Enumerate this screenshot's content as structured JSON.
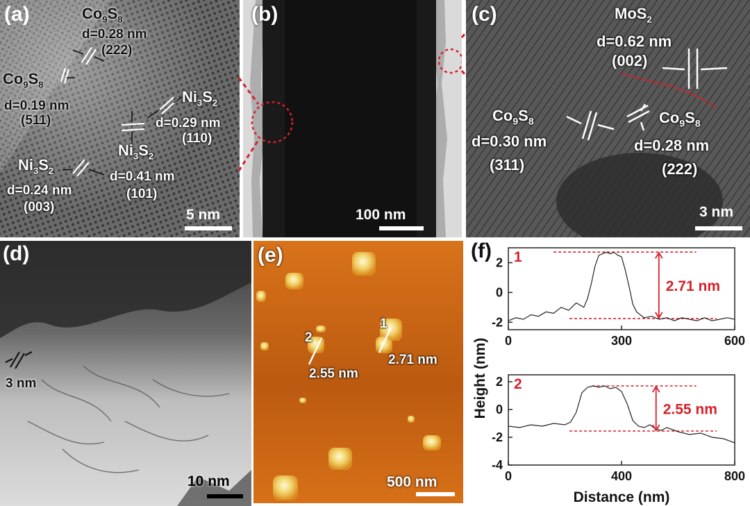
{
  "panels": {
    "a": {
      "label": "(a)",
      "scale": "5 nm",
      "co9s8_top": {
        "name": "Co9S8",
        "d": "d=0.28 nm",
        "hkl": "(222)"
      },
      "co9s8_left": {
        "name": "Co9S8",
        "d": "d=0.19 nm",
        "hkl": "(511)"
      },
      "ni3s2_right": {
        "name": "Ni3S2",
        "d": "d=0.29 nm",
        "hkl": "(110)"
      },
      "ni3s2_mid": {
        "name": "Ni3S2",
        "d": "d=0.41 nm",
        "hkl": "(101)"
      },
      "ni3s2_left": {
        "name": "Ni3S2",
        "d": "d=0.24 nm",
        "hkl": "(003)"
      }
    },
    "b": {
      "label": "(b)",
      "scale": "100 nm"
    },
    "c": {
      "label": "(c)",
      "scale": "3 nm",
      "mos2": {
        "name": "MoS2",
        "d": "d=0.62 nm",
        "hkl": "(002)"
      },
      "co9s8_left": {
        "name": "Co9S8",
        "d": "d=0.30 nm",
        "hkl": "(311)"
      },
      "co9s8_right": {
        "name": "Co9S8",
        "d": "d=0.28 nm",
        "hkl": "(222)"
      }
    },
    "d": {
      "label": "(d)",
      "scale": "10 nm",
      "spacing": "3 nm"
    },
    "e": {
      "label": "(e)",
      "scale": "500 nm",
      "line1": {
        "id": "1",
        "height": "2.71 nm"
      },
      "line2": {
        "id": "2",
        "height": "2.55 nm"
      }
    },
    "f": {
      "label": "(f)"
    }
  },
  "colors": {
    "highlight_red": "#d81f2a",
    "afm_bg": "#cf6a13",
    "tem_gray": "#5a5a5a"
  },
  "chart_data": [
    {
      "type": "line",
      "panel_tag": "1",
      "annotation": "2.71 nm",
      "xlim": [
        0,
        600
      ],
      "ylim": [
        -2.5,
        3
      ],
      "xticks": [
        0,
        300,
        600
      ],
      "yticks": [
        -2,
        0,
        2
      ],
      "x": [
        0,
        20,
        40,
        60,
        80,
        100,
        120,
        140,
        160,
        180,
        200,
        210,
        220,
        230,
        240,
        250,
        260,
        270,
        280,
        290,
        300,
        310,
        320,
        330,
        340,
        360,
        380,
        400,
        420,
        440,
        460,
        480,
        500,
        520,
        540,
        560,
        580,
        600
      ],
      "y": [
        -1.9,
        -1.7,
        -1.8,
        -1.5,
        -1.6,
        -1.3,
        -1.4,
        -1.0,
        -1.2,
        -0.7,
        -1.0,
        -0.4,
        0.6,
        1.8,
        2.5,
        2.6,
        2.7,
        2.6,
        2.7,
        2.5,
        2.4,
        1.5,
        0.4,
        -0.8,
        -1.3,
        -1.7,
        -1.6,
        -1.8,
        -1.7,
        -1.9,
        -1.7,
        -1.8,
        -1.9,
        -1.7,
        -1.9,
        -1.8,
        -1.7,
        -1.8
      ],
      "dashed_levels": [
        2.71,
        -1.75
      ]
    },
    {
      "type": "line",
      "panel_tag": "2",
      "annotation": "2.55 nm",
      "xlim": [
        0,
        800
      ],
      "ylim": [
        -4,
        2.5
      ],
      "xticks": [
        0,
        400,
        800
      ],
      "yticks": [
        -4,
        -2,
        0,
        2
      ],
      "x": [
        0,
        40,
        80,
        120,
        160,
        200,
        220,
        240,
        260,
        280,
        300,
        320,
        340,
        360,
        380,
        400,
        420,
        440,
        460,
        480,
        500,
        520,
        540,
        560,
        600,
        640,
        680,
        720,
        760,
        800
      ],
      "y": [
        -1.2,
        -1.3,
        -1.1,
        -1.2,
        -1.0,
        -1.1,
        -0.9,
        -0.2,
        1.2,
        1.6,
        1.7,
        1.6,
        1.7,
        1.5,
        1.6,
        1.3,
        0.4,
        -0.8,
        -1.2,
        -1.3,
        -1.1,
        -1.4,
        -1.5,
        -1.3,
        -1.6,
        -1.8,
        -1.7,
        -2.0,
        -2.1,
        -2.4
      ],
      "dashed_levels": [
        1.7,
        -1.55
      ]
    }
  ],
  "chart_axes": {
    "ylabel": "Height (nm)",
    "xlabel": "Distance (nm)"
  }
}
